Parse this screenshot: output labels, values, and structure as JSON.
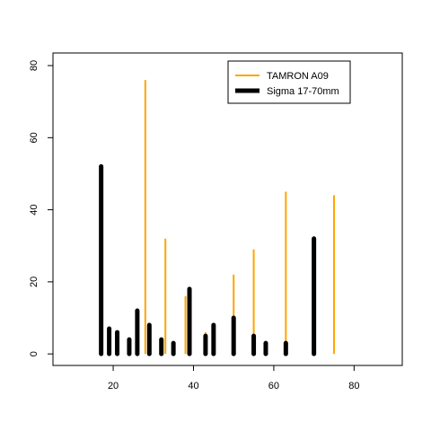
{
  "chart_data": {
    "type": "bar",
    "title": "",
    "xlabel": "",
    "ylabel": "",
    "xlim": [
      5,
      92
    ],
    "ylim": [
      -3.2,
      83.5
    ],
    "x_ticks": [
      20,
      40,
      60,
      80
    ],
    "y_ticks": [
      0,
      20,
      40,
      60,
      80
    ],
    "x_tick_labels": [
      "20",
      "40",
      "60",
      "80"
    ],
    "y_tick_labels": [
      "0",
      "20",
      "40",
      "60",
      "80"
    ],
    "grid": false,
    "legend_position": "top-right",
    "series": [
      {
        "name": "TAMRON A09",
        "color": "#ffa500",
        "line": "thin",
        "x": [
          28,
          33,
          38,
          43,
          50,
          55,
          63,
          75
        ],
        "values": [
          76,
          32,
          16,
          6,
          22,
          29,
          45,
          44
        ]
      },
      {
        "name": "Sigma 17-70mm",
        "color": "#000000",
        "line": "thick",
        "x": [
          17,
          19,
          21,
          24,
          26,
          29,
          32,
          35,
          39,
          43,
          45,
          50,
          55,
          58,
          63,
          70
        ],
        "values": [
          52,
          7,
          6,
          4,
          12,
          8,
          4,
          3,
          18,
          5,
          8,
          10,
          5,
          3,
          3,
          32
        ]
      }
    ]
  }
}
